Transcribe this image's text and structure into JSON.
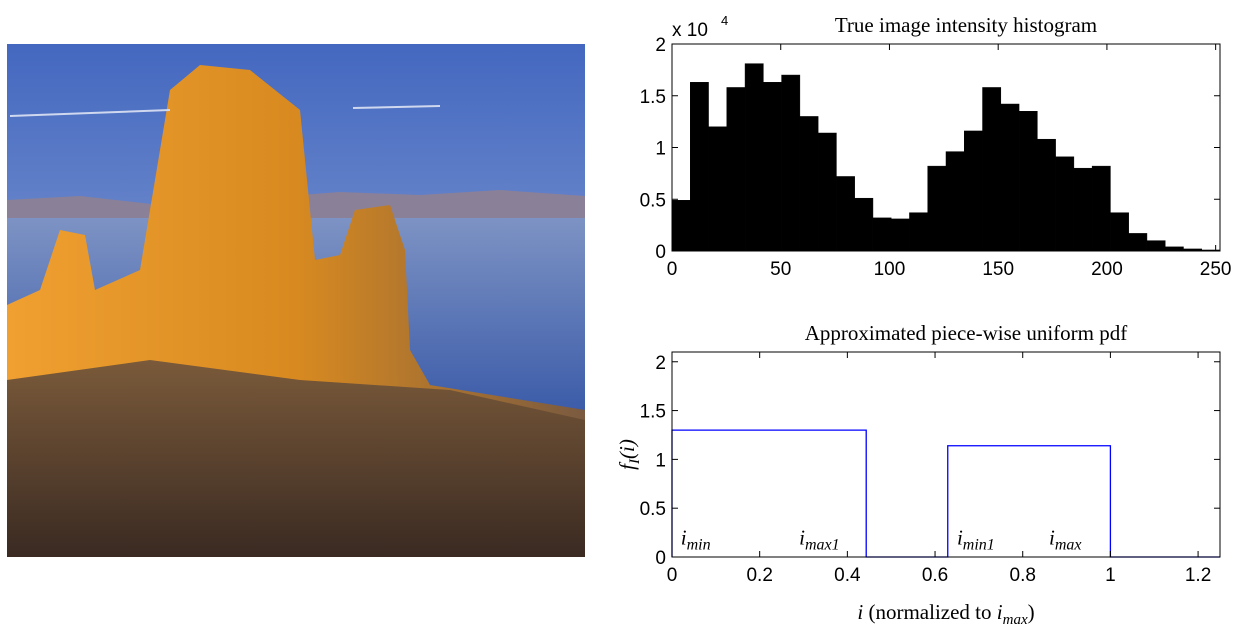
{
  "chart_data": [
    {
      "type": "histogram",
      "title": "True image intensity histogram",
      "y_scale_label": "x 10",
      "y_scale_exponent": "4",
      "bins": [
        0,
        8.4,
        16.8,
        25.2,
        33.6,
        42,
        50.4,
        58.8,
        67.2,
        75.6,
        84,
        92.4,
        100.8,
        109.2,
        117.6,
        126,
        134.4,
        142.8,
        151.2,
        159.6,
        168,
        176.4,
        184.8,
        193.2,
        201.6,
        210,
        218.4,
        226.8,
        235.2,
        243.6,
        252
      ],
      "values": [
        0.49,
        1.63,
        1.2,
        1.58,
        1.81,
        1.63,
        1.7,
        1.3,
        1.14,
        0.72,
        0.51,
        0.32,
        0.31,
        0.37,
        0.82,
        0.96,
        1.16,
        1.58,
        1.42,
        1.35,
        1.08,
        0.91,
        0.8,
        0.82,
        0.37,
        0.17,
        0.1,
        0.04,
        0.02,
        0.01
      ],
      "color": "#000000",
      "xlim": [
        0,
        252
      ],
      "xticks": [
        0,
        50,
        100,
        150,
        200,
        250
      ],
      "ylim": [
        0,
        2
      ],
      "yticks": [
        0,
        0.5,
        1,
        1.5,
        2
      ]
    },
    {
      "type": "line",
      "title": "Approximated piece-wise uniform pdf",
      "xlabel": [
        "i",
        " (normalized to ",
        "i",
        "max",
        ")"
      ],
      "ylabel": [
        "f",
        "I",
        "(i)"
      ],
      "x": [
        0,
        0,
        0.443,
        0.443,
        0.629,
        0.629,
        1,
        1,
        1.25
      ],
      "series": [
        {
          "color": "#0000ff",
          "values": [
            0,
            1.3,
            1.3,
            0,
            0,
            1.14,
            1.14,
            0,
            0
          ]
        }
      ],
      "annotations": [
        {
          "text": "i",
          "sub": "min",
          "x": 0.02,
          "y": 0.13
        },
        {
          "text": "i",
          "sub": "max1",
          "x": 0.29,
          "y": 0.13
        },
        {
          "text": "i",
          "sub": "min1",
          "x": 0.65,
          "y": 0.13
        },
        {
          "text": "i",
          "sub": "max",
          "x": 0.86,
          "y": 0.13
        }
      ],
      "xlim": [
        0,
        1.25
      ],
      "xticks": [
        0,
        0.2,
        0.4,
        0.6,
        0.8,
        1,
        1.2
      ],
      "ylim": [
        0,
        2.1
      ],
      "yticks": [
        0,
        0.5,
        1,
        1.5,
        2
      ]
    }
  ]
}
